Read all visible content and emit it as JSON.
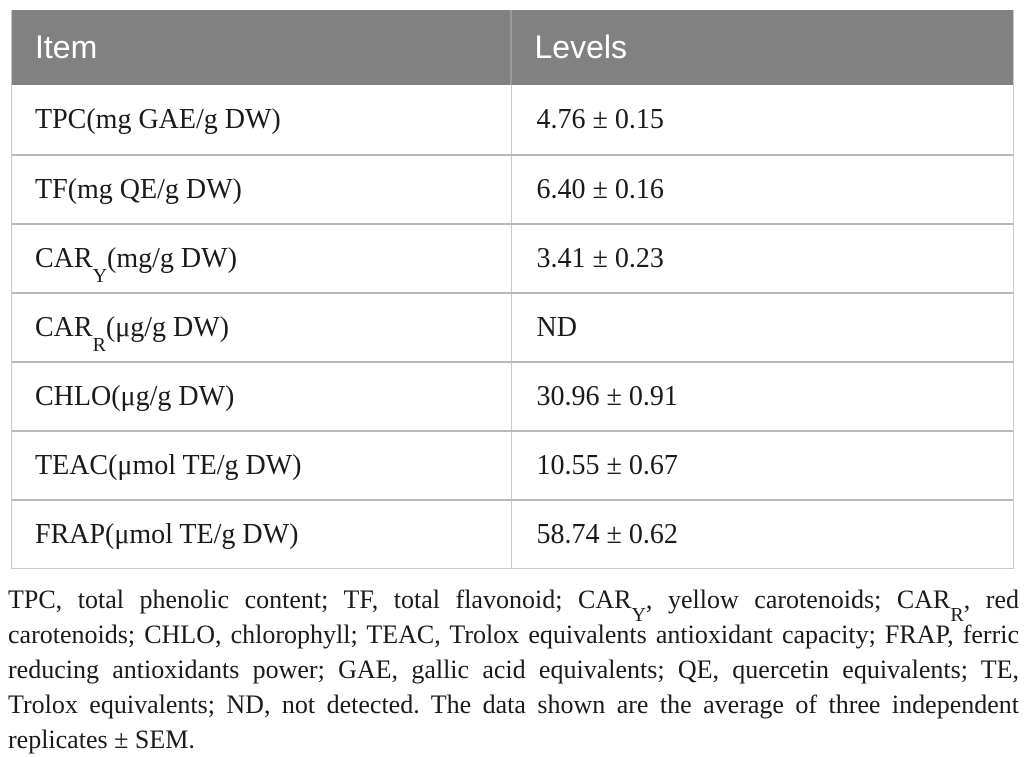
{
  "table": {
    "header": {
      "item": "Item",
      "levels": "Levels"
    },
    "rows": [
      {
        "pre": "TPC",
        "sub": "",
        "post": " (mg GAE/g DW)",
        "level": "4.76 ± 0.15"
      },
      {
        "pre": "TF",
        "sub": "",
        "post": " (mg QE/g DW)",
        "level": "6.40 ± 0.16"
      },
      {
        "pre": "CAR",
        "sub": "Y",
        "post": " (mg/g DW)",
        "level": "3.41 ± 0.23"
      },
      {
        "pre": "CAR",
        "sub": "R",
        "post": " (μg/g DW)",
        "level": "ND"
      },
      {
        "pre": "CHLO",
        "sub": "",
        "post": " (μg/g DW)",
        "level": "30.96 ± 0.91"
      },
      {
        "pre": "TEAC",
        "sub": "",
        "post": " (μmol TE/g DW)",
        "level": "10.55 ± 0.67"
      },
      {
        "pre": "FRAP",
        "sub": "",
        "post": " (μmol TE/g DW)",
        "level": "58.74 ± 0.62"
      }
    ]
  },
  "footnote": {
    "parts": [
      {
        "t": "TPC, total phenolic content; TF, total flavonoid; CAR"
      },
      {
        "s": "Y"
      },
      {
        "t": ", yellow carotenoids; CAR"
      },
      {
        "s": "R"
      },
      {
        "t": ", red carotenoids; CHLO, chlorophyll; TEAC, Trolox equivalents antioxidant capacity; FRAP, ferric reducing antioxidants power; GAE, gallic acid equivalents; QE, quercetin equivalents; TE, Trolox equivalents; ND, not detected. The data shown are the average of three independent replicates ± SEM."
      }
    ]
  },
  "colors": {
    "header_bg": "#818181",
    "header_text": "#ffffff",
    "row_divider": "#b9b9b9",
    "outer_border": "#c9c9c9",
    "body_text": "#1a1a1a"
  }
}
